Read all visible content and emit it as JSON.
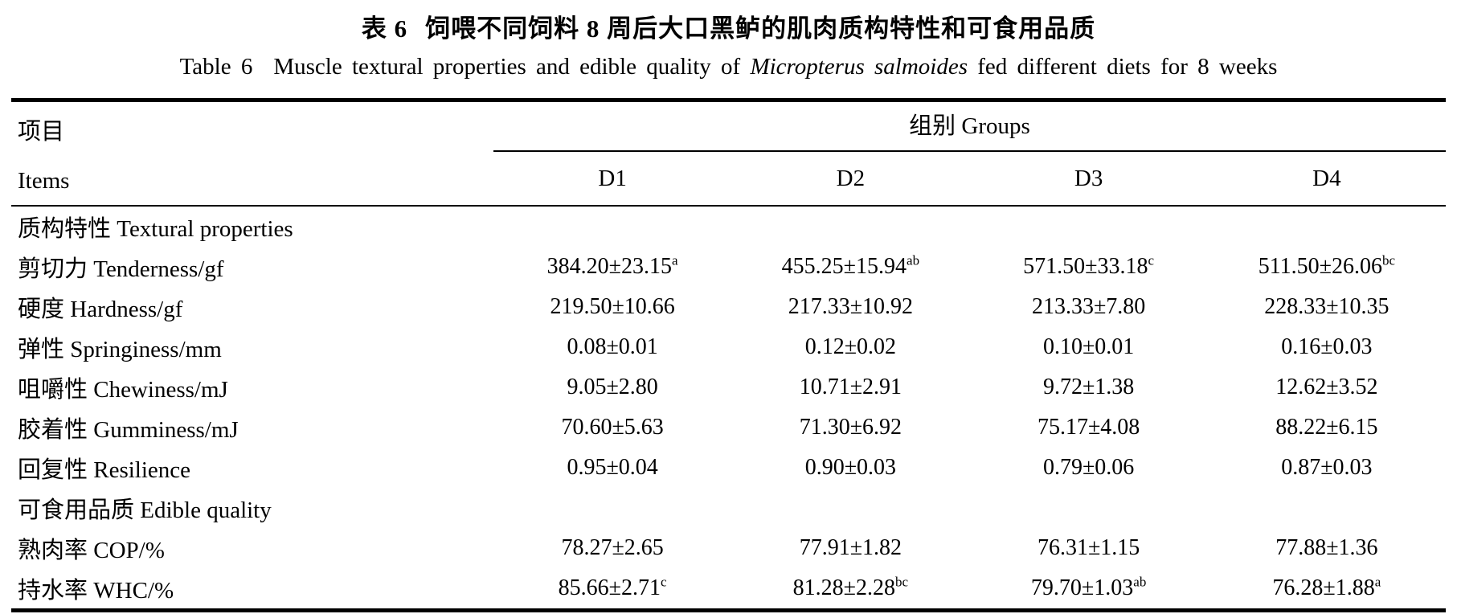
{
  "titles": {
    "cn_label": "表 6",
    "cn_text": "饲喂不同饲料 8 周后大口黑鲈的肌肉质构特性和可食用品质",
    "en_label": "Table 6",
    "en_text_before": "Muscle textural properties and edible quality of",
    "en_species_italic": "Micropterus salmoides",
    "en_text_after": "fed different diets for 8 weeks"
  },
  "header": {
    "items_cn": "项目",
    "items_en": "Items",
    "groups_label": "组别 Groups",
    "columns": [
      "D1",
      "D2",
      "D3",
      "D4"
    ]
  },
  "rows": [
    {
      "label": "质构特性 Textural properties",
      "section": true,
      "cells": []
    },
    {
      "label": "剪切力 Tenderness/gf",
      "cells": [
        {
          "text": "384.20±23.15",
          "sup": "a"
        },
        {
          "text": "455.25±15.94",
          "sup": "ab"
        },
        {
          "text": "571.50±33.18",
          "sup": "c"
        },
        {
          "text": "511.50±26.06",
          "sup": "bc"
        }
      ]
    },
    {
      "label": "硬度 Hardness/gf",
      "cells": [
        {
          "text": "219.50±10.66",
          "sup": ""
        },
        {
          "text": "217.33±10.92",
          "sup": ""
        },
        {
          "text": "213.33±7.80",
          "sup": ""
        },
        {
          "text": "228.33±10.35",
          "sup": ""
        }
      ]
    },
    {
      "label": "弹性 Springiness/mm",
      "cells": [
        {
          "text": "0.08±0.01",
          "sup": ""
        },
        {
          "text": "0.12±0.02",
          "sup": ""
        },
        {
          "text": "0.10±0.01",
          "sup": ""
        },
        {
          "text": "0.16±0.03",
          "sup": ""
        }
      ]
    },
    {
      "label": "咀嚼性 Chewiness/mJ",
      "cells": [
        {
          "text": "9.05±2.80",
          "sup": ""
        },
        {
          "text": "10.71±2.91",
          "sup": ""
        },
        {
          "text": "9.72±1.38",
          "sup": ""
        },
        {
          "text": "12.62±3.52",
          "sup": ""
        }
      ]
    },
    {
      "label": "胶着性 Gumminess/mJ",
      "cells": [
        {
          "text": "70.60±5.63",
          "sup": ""
        },
        {
          "text": "71.30±6.92",
          "sup": ""
        },
        {
          "text": "75.17±4.08",
          "sup": ""
        },
        {
          "text": "88.22±6.15",
          "sup": ""
        }
      ]
    },
    {
      "label": "回复性 Resilience",
      "cells": [
        {
          "text": "0.95±0.04",
          "sup": ""
        },
        {
          "text": "0.90±0.03",
          "sup": ""
        },
        {
          "text": "0.79±0.06",
          "sup": ""
        },
        {
          "text": "0.87±0.03",
          "sup": ""
        }
      ]
    },
    {
      "label": "可食用品质 Edible quality",
      "section": true,
      "cells": []
    },
    {
      "label": "熟肉率 COP/%",
      "cells": [
        {
          "text": "78.27±2.65",
          "sup": ""
        },
        {
          "text": "77.91±1.82",
          "sup": ""
        },
        {
          "text": "76.31±1.15",
          "sup": ""
        },
        {
          "text": "77.88±1.36",
          "sup": ""
        }
      ]
    },
    {
      "label": "持水率 WHC/%",
      "cells": [
        {
          "text": "85.66±2.71",
          "sup": "c"
        },
        {
          "text": "81.28±2.28",
          "sup": "bc"
        },
        {
          "text": "79.70±1.03",
          "sup": "ab"
        },
        {
          "text": "76.28±1.88",
          "sup": "a"
        }
      ]
    }
  ],
  "colors": {
    "text": "#000000",
    "rule": "#000000",
    "background": "#ffffff"
  }
}
